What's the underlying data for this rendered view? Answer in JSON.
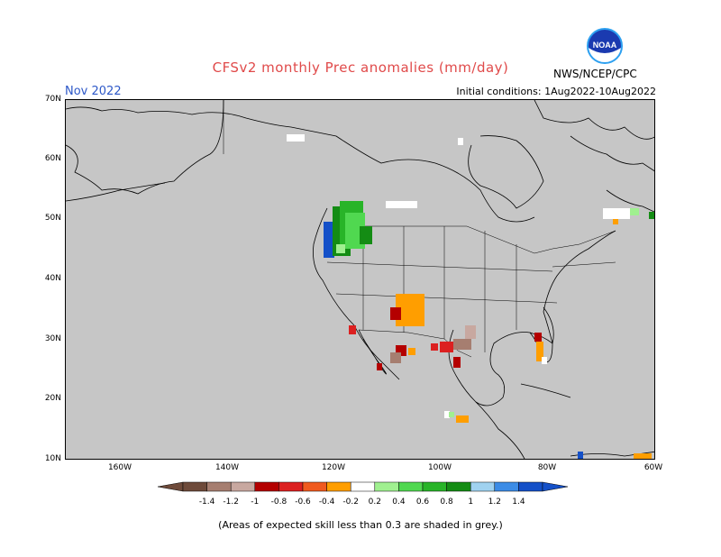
{
  "title": "CFSv2 monthly Prec anomalies (mm/day)",
  "month": "Nov 2022",
  "initial_conditions": "Initial conditions: 1Aug2022-10Aug2022",
  "agency": "NWS/NCEP/CPC",
  "logo_text": "NOAA",
  "footnote": "(Areas of expected skill less than 0.3 are shaded in grey.)",
  "map": {
    "lat_labels": [
      "70N",
      "60N",
      "50N",
      "40N",
      "30N",
      "20N",
      "10N"
    ],
    "lon_labels": [
      "160W",
      "140W",
      "120W",
      "100W",
      "80W",
      "60W"
    ],
    "land_color": "#c6c6c6"
  },
  "colorbar": {
    "ticks": [
      "-1.4",
      "-1.2",
      "-1",
      "-0.8",
      "-0.6",
      "-0.4",
      "-0.2",
      "0.2",
      "0.4",
      "0.6",
      "0.8",
      "1",
      "1.2",
      "1.4"
    ],
    "colors": [
      "#6e4a3a",
      "#a67e70",
      "#c8a8a0",
      "#b40000",
      "#dc2020",
      "#f05a1e",
      "#ff9e00",
      "#ffffff",
      "#a0f090",
      "#50d850",
      "#28b428",
      "#148c14",
      "#a0d2f0",
      "#3c8ce6",
      "#1450c8"
    ]
  }
}
